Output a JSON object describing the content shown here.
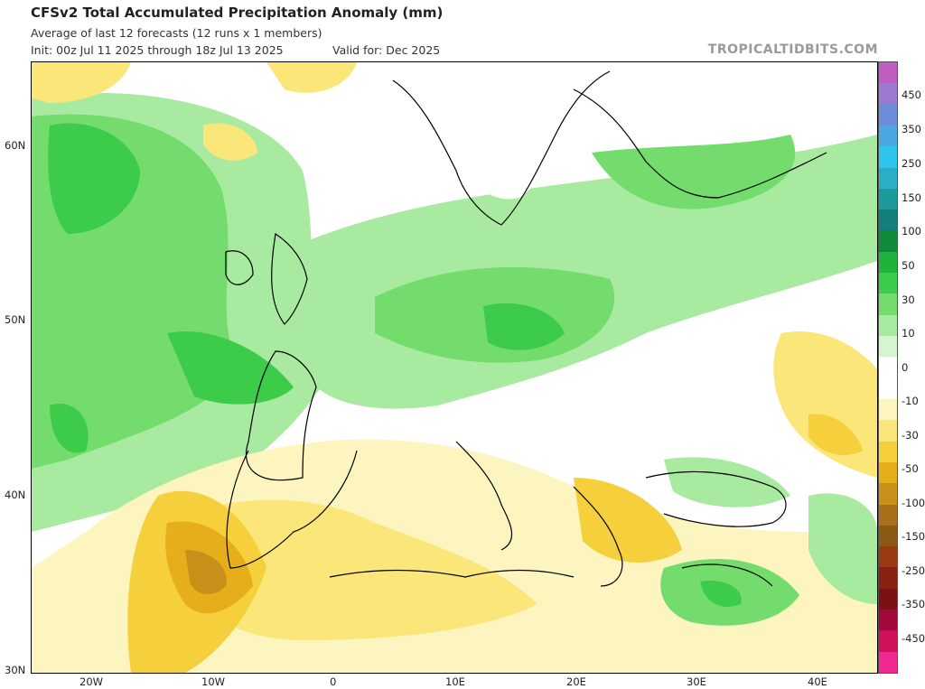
{
  "header": {
    "title": "CFSv2 Total Accumulated Precipitation Anomaly (mm)",
    "subtitle": "Average of last 12 forecasts (12 runs x 1 members)",
    "init": "Init: 00z Jul 11 2025 through 18z Jul 13 2025",
    "valid": "Valid for: Dec 2025",
    "brand": "TROPICALTIDBITS.COM"
  },
  "axes": {
    "lat_labels": [
      "60N",
      "50N",
      "40N",
      "30N"
    ],
    "lon_labels": [
      "20W",
      "10W",
      "0",
      "10E",
      "20E",
      "30E",
      "40E"
    ]
  },
  "colorbar": {
    "labels": [
      "450",
      "350",
      "250",
      "150",
      "100",
      "50",
      "30",
      "10",
      "0",
      "-10",
      "-30",
      "-50",
      "-100",
      "-150",
      "-250",
      "-350",
      "-450"
    ],
    "colors": [
      "#c05ec0",
      "#9c7ad2",
      "#6c8ed8",
      "#4aa8e0",
      "#2ec4ec",
      "#2aaec8",
      "#1f9a9a",
      "#137e7e",
      "#0e8a3a",
      "#1fb23c",
      "#3ccc4a",
      "#74dc6c",
      "#a8eaa0",
      "#d4f5d0",
      "#ffffff",
      "#ffffff",
      "#fdf5c0",
      "#fbe67a",
      "#f5cf3c",
      "#e6ae1a",
      "#c89018",
      "#a8701a",
      "#8a5a14",
      "#9a3a10",
      "#8a2010",
      "#7a1010",
      "#a00a3a",
      "#d0105a",
      "#f02890"
    ]
  }
}
